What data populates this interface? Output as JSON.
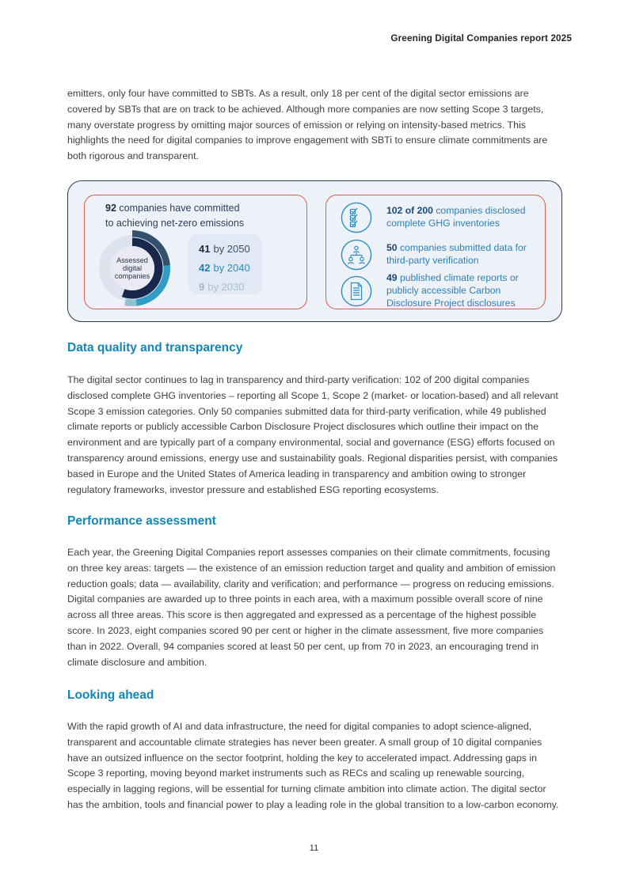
{
  "header": {
    "title": "Greening Digital Companies report 2025"
  },
  "page_number": "11",
  "intro_paragraph": "emitters, only four have committed to SBTs. As a result, only 18 per cent of the digital sector emissions are covered by SBTs that are on track to be achieved. Although more companies are now setting Scope 3 targets, many overstate progress by omitting major sources of emission or relying on intensity-based metrics. This highlights the need for digital companies to improve engagement with SBTi to ensure climate commitments are both rigorous and transparent.",
  "infographic": {
    "net_zero": {
      "stat_number": "92",
      "stat_line1": " companies have committed",
      "stat_line2": "to achieving net-zero emissions",
      "targets": [
        {
          "value": "41",
          "label": "by 2050"
        },
        {
          "value": "42",
          "label": "by 2040"
        },
        {
          "value": "9",
          "label": "by 2030"
        }
      ]
    },
    "disclosures": {
      "items": [
        {
          "icon": "checklist-icon",
          "number": "102 of 200",
          "text": " companies disclosed complete GHG inventories"
        },
        {
          "icon": "org-chart-icon",
          "number": "50",
          "text": " companies submitted data for third-party verification"
        },
        {
          "icon": "report-document-icon",
          "number": "49",
          "text": " published climate reports or publicly accessible Carbon Disclosure Project disclosures"
        }
      ]
    }
  },
  "sections": [
    {
      "heading": "Data quality and transparency",
      "body": "The digital sector continues to lag in transparency and third-party verification: 102 of 200 digital companies disclosed complete GHG inventories – reporting all Scope 1, Scope 2 (market- or location-based) and all relevant Scope 3 emission categories. Only 50 companies submitted data for third-party verification, while 49 published climate reports or publicly accessible Carbon Disclosure Project disclosures which outline their impact on the environment and are typically part of a company environmental, social and governance (ESG) efforts focused on transparency around emissions, energy use and sustainability goals. Regional disparities persist, with companies based in Europe and the United States of America leading in transparency and ambition owing to stronger regulatory frameworks, investor pressure and established ESG reporting ecosystems."
    },
    {
      "heading": "Performance assessment",
      "body": "Each year, the Greening Digital Companies report assesses companies on their climate commitments, focusing on three key areas: targets — the existence of an emission reduction target and quality and ambition of emission reduction goals; data — availability, clarity and verification; and performance — progress on reducing emissions. Digital companies are awarded up to three points in each area, with a maximum possible overall score of nine across all three areas. This score is then aggregated and expressed as a percentage of the highest possible score. In 2023, eight companies scored 90 per cent or higher in the climate assessment, five more companies than in 2022. Overall, 94 companies scored at least 50 per cent, up from 70 in 2023, an encouraging trend in climate disclosure and ambition."
    },
    {
      "heading": "Looking ahead",
      "body": "With the rapid growth of AI and data infrastructure, the need for digital companies to adopt science-aligned, transparent and accountable climate strategies has never been greater. A small group of 10 digital companies have an outsized influence on the sector footprint, holding the key to accelerated impact. Addressing gaps in Scope 3 reporting, moving beyond market instruments such as RECs and scaling up renewable sourcing, especially in lagging regions, will be essential for turning climate ambition into climate action. The digital sector has the ambition, tools and financial power to play a leading role in the global transition to a low-carbon economy."
    }
  ],
  "chart_data": {
    "type": "donut",
    "title": "92 companies have committed to achieving net-zero emissions",
    "center_label": "Assessed digital companies",
    "center_label_lines": [
      "Assessed",
      "digital",
      "companies"
    ],
    "total_committed": 92,
    "segments": [
      {
        "label": "41 by 2050",
        "value": 41,
        "color": "#33516d"
      },
      {
        "label": "42 by 2040",
        "value": 42,
        "color": "#2f9dc4"
      },
      {
        "label": "9 by 2030",
        "value": 9,
        "color": "#8ec2cc"
      }
    ],
    "inner_arc": {
      "label": "companies committed",
      "sweep_deg": 200,
      "color": "#18274b"
    },
    "outer_sweep_deg": 192,
    "background_circle_color": "#dce2ee",
    "center_circle_color": "#e9eaf2",
    "legend_position": "right"
  },
  "colors": {
    "heading_accent": "#1187b8",
    "infographic_border": "#2b3b52",
    "infographic_background": "#edf1f8",
    "panel_border": "#d9604f",
    "stats_box_background": "#e2e9f4",
    "icon_stroke": "#2e8fc3",
    "disclosure_text": "#2e7fb8",
    "disclosure_number": "#1d4a77"
  }
}
